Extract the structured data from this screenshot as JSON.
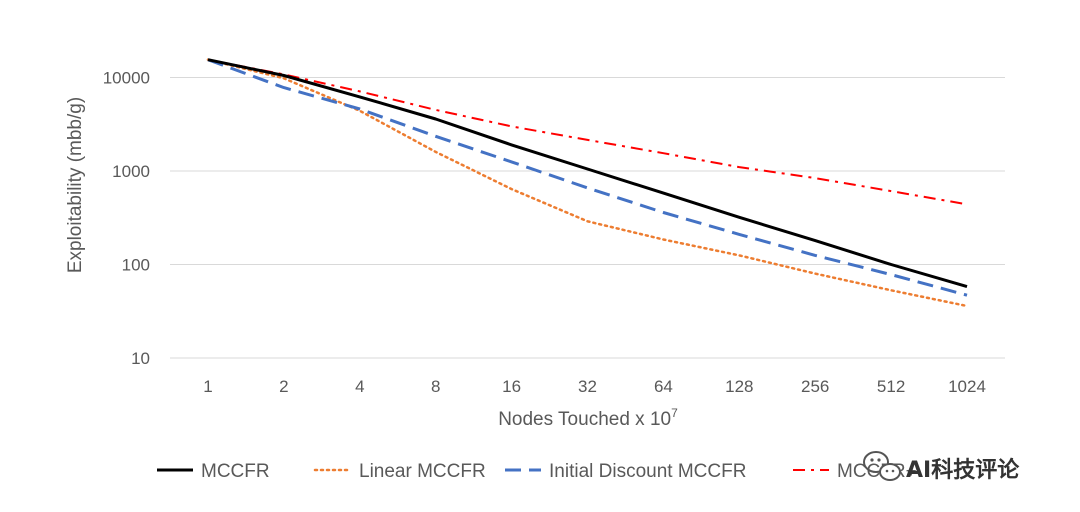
{
  "chart_data": {
    "type": "line",
    "title": "",
    "xlabel": "Nodes Touched x 10",
    "xlabel_exponent": "7",
    "ylabel": "Exploitability (mbb/g)",
    "yscale": "log",
    "ylim": [
      10,
      16000
    ],
    "yticks": [
      10,
      100,
      1000,
      10000
    ],
    "ytick_labels": [
      "10",
      "100",
      "1000",
      "10000"
    ],
    "categories": [
      "1",
      "2",
      "4",
      "8",
      "16",
      "32",
      "64",
      "128",
      "256",
      "512",
      "1024"
    ],
    "grid": "horizontal",
    "legend_position": "bottom",
    "series": [
      {
        "name": "MCCFR",
        "color": "#000000",
        "style": "solid",
        "values": [
          15500,
          10500,
          6200,
          3600,
          1900,
          1050,
          580,
          320,
          180,
          100,
          58
        ]
      },
      {
        "name": "Linear MCCFR",
        "color": "#ED7D31",
        "style": "dotted",
        "values": [
          15500,
          9800,
          4400,
          1600,
          640,
          290,
          185,
          125,
          80,
          53,
          36
        ]
      },
      {
        "name": "Initial Discount MCCFR",
        "color": "#4472C4",
        "style": "dashed",
        "values": [
          15500,
          7800,
          4600,
          2350,
          1250,
          660,
          360,
          210,
          125,
          78,
          47
        ]
      },
      {
        "name": "MCCFR+",
        "color": "#FF0000",
        "style": "dashdot",
        "values": [
          15500,
          10800,
          7100,
          4500,
          3000,
          2150,
          1550,
          1100,
          840,
          610,
          440
        ]
      }
    ]
  },
  "watermark": {
    "text": "AI科技评论",
    "icon": "wechat-icon"
  }
}
